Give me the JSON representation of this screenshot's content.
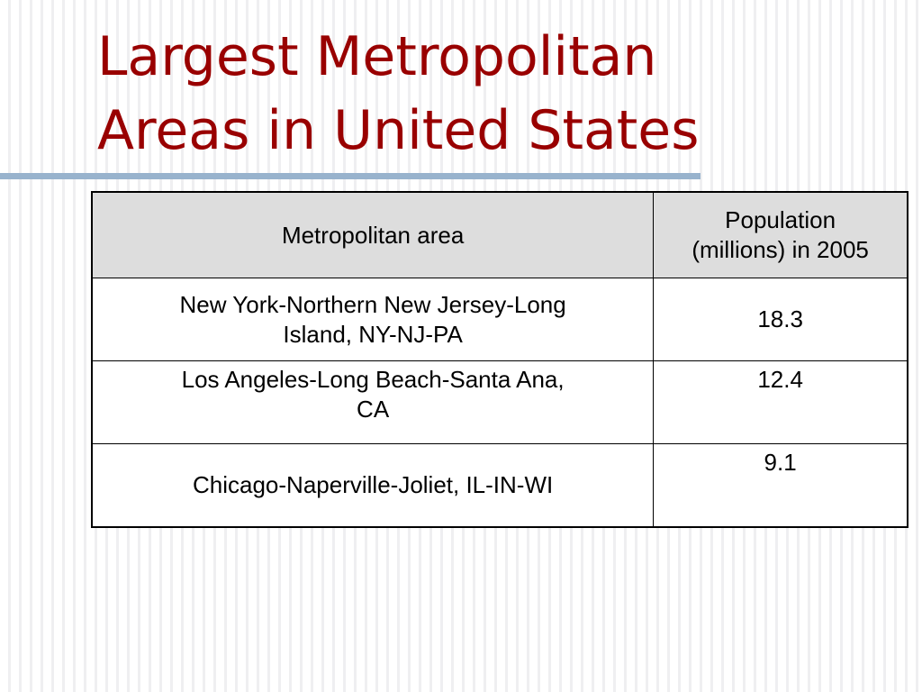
{
  "slide": {
    "title_line1": "Largest Metropolitan",
    "title_line2": "Areas in United States",
    "title_color": "#990000",
    "rule_color": "#98b3cd"
  },
  "table": {
    "headers": {
      "area": "Metropolitan area",
      "population_line1": "Population",
      "population_line2": "(millions) in 2005"
    },
    "header_background": "#dddddd",
    "rows": [
      {
        "area_line1": "New York-Northern New Jersey-Long",
        "area_line2": "Island, NY-NJ-PA",
        "population": "18.3"
      },
      {
        "area_line1": "Los Angeles-Long Beach-Santa Ana,",
        "area_line2": "CA",
        "population": "12.4"
      },
      {
        "area_line1": "Chicago-Naperville-Joliet, IL-IN-WI",
        "area_line2": "",
        "population": "9.1"
      }
    ]
  }
}
